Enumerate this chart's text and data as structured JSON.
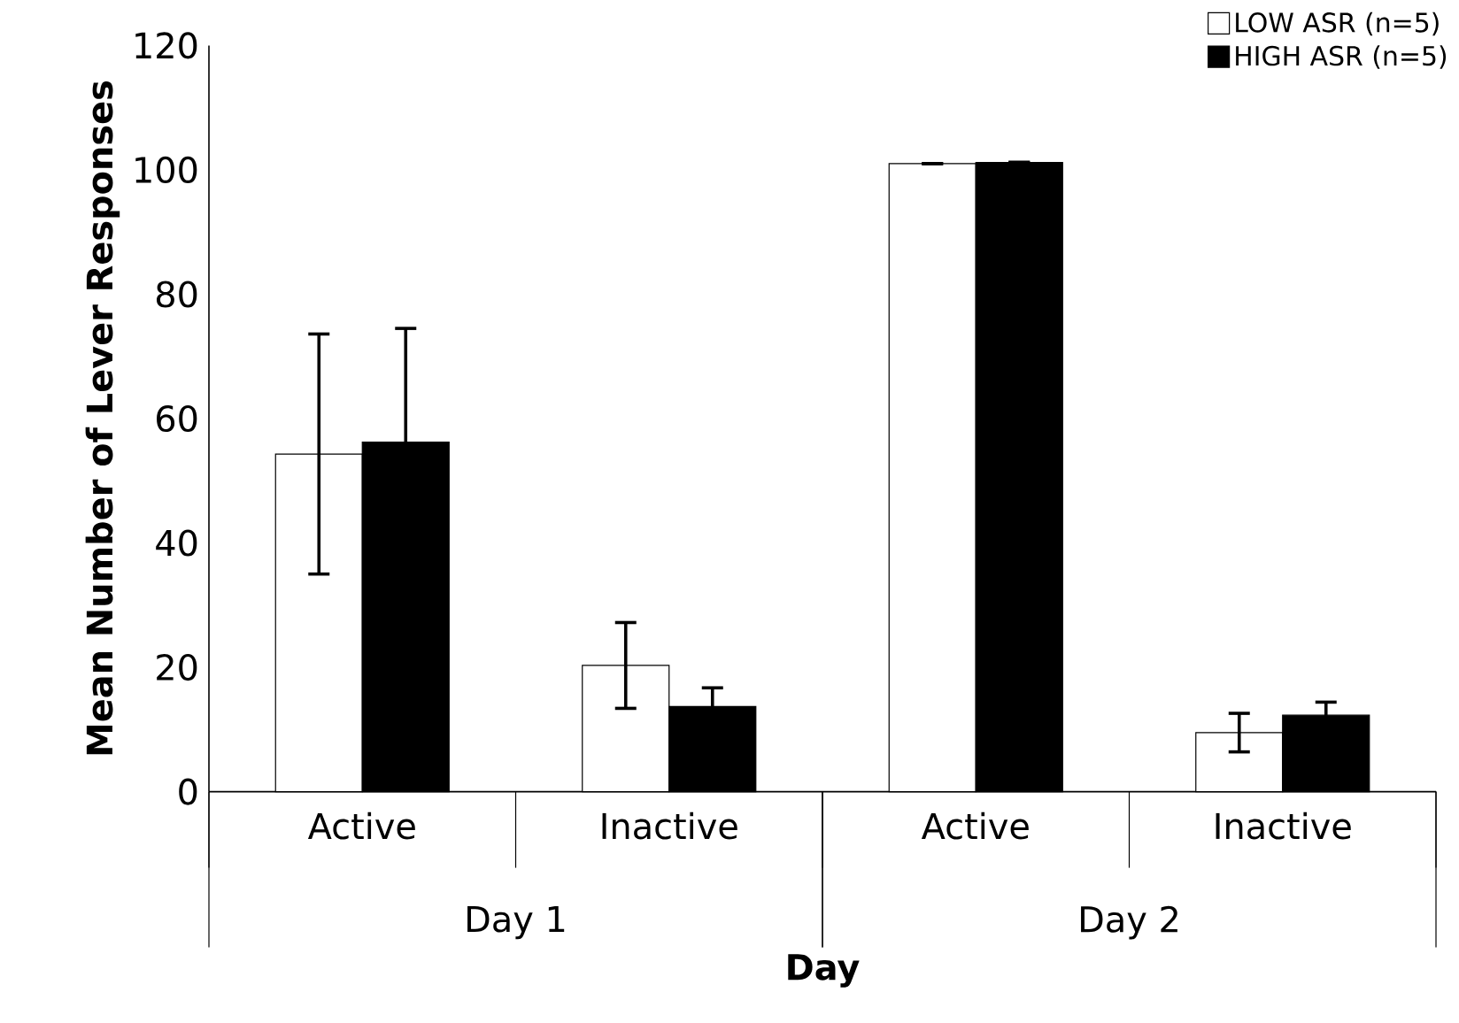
{
  "chart_data": {
    "type": "bar",
    "xlabel": "Day",
    "ylabel": "Mean Number of Lever Responses",
    "categories": [
      "Active",
      "Inactive",
      "Active",
      "Inactive"
    ],
    "annotations": [
      "Day 1",
      "Day 2"
    ],
    "series": [
      {
        "name": "LOW ASR (n=5)",
        "color": "#ffffff",
        "values": [
          54.3,
          20.3,
          101.0,
          9.5
        ],
        "errors": [
          19.3,
          6.9,
          null,
          3.1
        ]
      },
      {
        "name": "HIGH ASR (n=5)",
        "color": "#000000",
        "values": [
          56.2,
          13.7,
          101.2,
          12.3
        ],
        "errors": [
          18.3,
          3.0,
          null,
          2.1
        ]
      }
    ],
    "ylim": [
      0,
      120
    ],
    "yticks": [
      0,
      20,
      40,
      60,
      80,
      100,
      120
    ],
    "grid": false,
    "legend": "top right"
  }
}
